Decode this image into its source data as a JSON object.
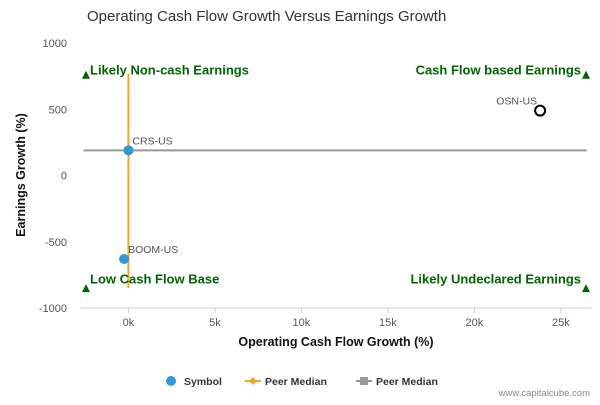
{
  "chart_data": {
    "type": "scatter",
    "title": "Operating Cash Flow Growth Versus Earnings Growth",
    "xlabel": "Operating Cash Flow Growth (%)",
    "ylabel": "Earnings Growth (%)",
    "xlim": [
      -2800,
      26800
    ],
    "ylim": [
      -1000,
      1000
    ],
    "x_tick_values": [
      0,
      5000,
      10000,
      15000,
      20000,
      25000
    ],
    "x_tick_labels": [
      "0k",
      "5k",
      "10k",
      "15k",
      "20k",
      "25k"
    ],
    "y_tick_values": [
      1000,
      500,
      0,
      -500,
      -1000
    ],
    "y_tick_labels": [
      "1000",
      "500",
      "0",
      "-500",
      "-1000"
    ],
    "grid": false,
    "points": [
      {
        "label": "CRS-US",
        "x": 0,
        "y": 190,
        "style": "filled",
        "color": "#2e9bd6"
      },
      {
        "label": "BOOM-US",
        "x": -250,
        "y": -630,
        "style": "filled",
        "color": "#2e9bd6"
      },
      {
        "label": "OSN-US",
        "x": 23800,
        "y": 490,
        "style": "hollow",
        "color": "#000000"
      }
    ],
    "peer_median_x": {
      "name": "Peer Median",
      "value": 0,
      "color": "#f5a623",
      "y_range": [
        -850,
        770
      ]
    },
    "peer_median_y": {
      "name": "Peer Median",
      "value": 190,
      "color": "#999999",
      "x_range": [
        -2600,
        26500
      ]
    },
    "quadrants": [
      {
        "text": "Likely Non-cash Earnings",
        "corner": "top-left"
      },
      {
        "text": "Cash Flow based Earnings",
        "corner": "top-right"
      },
      {
        "text": "Low Cash Flow Base",
        "corner": "bottom-left"
      },
      {
        "text": "Likely Undeclared Earnings",
        "corner": "bottom-right"
      }
    ],
    "quadrant_color": "#006400",
    "legend": [
      {
        "name": "Symbol",
        "marker": "circle",
        "color": "#2e9bd6"
      },
      {
        "name": "Peer Median",
        "marker": "diamond-line",
        "color": "#f5a623"
      },
      {
        "name": "Peer Median",
        "marker": "square-line",
        "color": "#999999"
      }
    ],
    "legend_position": "bottom"
  },
  "credit": "www.capitalcube.com"
}
